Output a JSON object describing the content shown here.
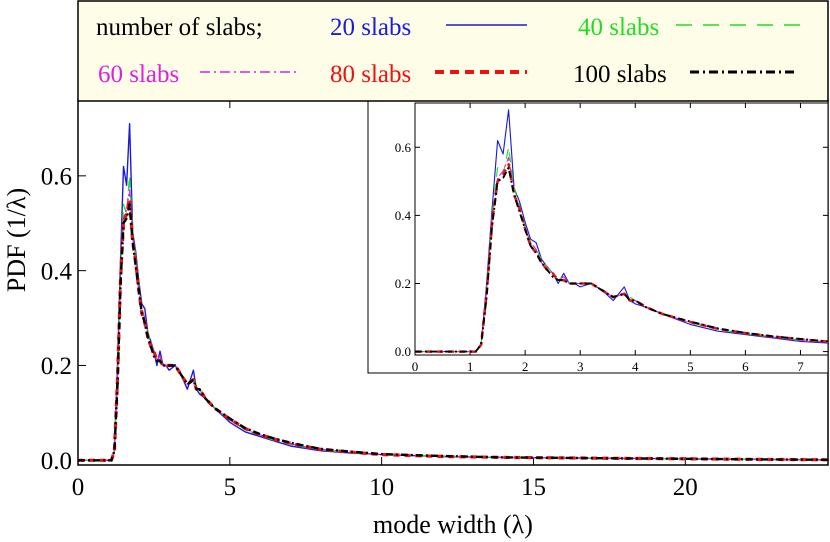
{
  "chart_data": [
    {
      "type": "line",
      "role": "main",
      "xlabel": "mode width (λ)",
      "ylabel": "PDF (1/λ)",
      "xlim": [
        0,
        24.7
      ],
      "ylim": [
        -0.01,
        0.76
      ],
      "xticks": [
        0,
        5,
        10,
        15,
        20
      ],
      "yticks": [
        0.0,
        0.2,
        0.4,
        0.6
      ],
      "ytick_labels": [
        "0.0",
        "0.2",
        "0.4",
        "0.6"
      ],
      "legend": {
        "placement": "top",
        "heading": "number of slabs;",
        "entries": [
          {
            "label": "20 slabs",
            "series": "20 slabs"
          },
          {
            "label": "40 slabs",
            "series": "40 slabs"
          },
          {
            "label": "60 slabs",
            "series": "60 slabs"
          },
          {
            "label": "80 slabs",
            "series": "80 slabs"
          },
          {
            "label": "100 slabs",
            "series": "100 slabs"
          }
        ]
      },
      "series": [
        {
          "name": "20 slabs",
          "color": "#1a1adc",
          "style": "solid",
          "x": [
            0,
            1.0,
            1.1,
            1.2,
            1.3,
            1.4,
            1.5,
            1.6,
            1.7,
            1.8,
            1.9,
            2.0,
            2.1,
            2.2,
            2.3,
            2.4,
            2.5,
            2.6,
            2.7,
            2.8,
            2.9,
            3.0,
            3.2,
            3.4,
            3.6,
            3.8,
            3.9,
            4.0,
            4.2,
            4.5,
            5.0,
            5.5,
            6.0,
            6.5,
            7.0,
            7.5,
            8,
            9,
            10,
            12,
            14,
            16,
            18,
            20,
            22,
            24.7
          ],
          "y": [
            0,
            0,
            0,
            0.02,
            0.2,
            0.42,
            0.62,
            0.58,
            0.71,
            0.48,
            0.44,
            0.38,
            0.33,
            0.32,
            0.27,
            0.25,
            0.23,
            0.2,
            0.23,
            0.2,
            0.2,
            0.19,
            0.2,
            0.18,
            0.15,
            0.19,
            0.15,
            0.14,
            0.13,
            0.11,
            0.08,
            0.06,
            0.05,
            0.04,
            0.03,
            0.025,
            0.02,
            0.015,
            0.012,
            0.008,
            0.006,
            0.005,
            0.004,
            0.003,
            0.002,
            0.001
          ]
        },
        {
          "name": "40 slabs",
          "color": "#22dd22",
          "style": "dashed",
          "x": [
            0,
            1.0,
            1.1,
            1.2,
            1.3,
            1.4,
            1.5,
            1.6,
            1.7,
            1.8,
            1.9,
            2.0,
            2.1,
            2.2,
            2.3,
            2.4,
            2.5,
            2.6,
            2.7,
            2.8,
            2.9,
            3.0,
            3.2,
            3.4,
            3.6,
            3.8,
            3.9,
            4.0,
            4.2,
            4.5,
            5.0,
            5.5,
            6.0,
            6.5,
            7.0,
            7.5,
            8,
            9,
            10,
            12,
            14,
            16,
            18,
            20,
            22,
            24.7
          ],
          "y": [
            0,
            0,
            0,
            0.02,
            0.19,
            0.4,
            0.54,
            0.52,
            0.6,
            0.48,
            0.43,
            0.37,
            0.32,
            0.3,
            0.27,
            0.25,
            0.23,
            0.21,
            0.22,
            0.2,
            0.2,
            0.2,
            0.2,
            0.18,
            0.16,
            0.17,
            0.16,
            0.15,
            0.13,
            0.11,
            0.085,
            0.065,
            0.052,
            0.042,
            0.034,
            0.027,
            0.022,
            0.016,
            0.012,
            0.008,
            0.006,
            0.005,
            0.004,
            0.003,
            0.002,
            0.001
          ]
        },
        {
          "name": "60 slabs",
          "color": "#dd22dd",
          "style": "dashdot",
          "x": [
            0,
            1.0,
            1.1,
            1.2,
            1.3,
            1.4,
            1.5,
            1.6,
            1.7,
            1.8,
            1.9,
            2.0,
            2.1,
            2.2,
            2.3,
            2.4,
            2.5,
            2.6,
            2.7,
            2.8,
            2.9,
            3.0,
            3.2,
            3.4,
            3.6,
            3.8,
            3.9,
            4.0,
            4.2,
            4.5,
            5.0,
            5.5,
            6.0,
            6.5,
            7.0,
            7.5,
            8,
            9,
            10,
            12,
            14,
            16,
            18,
            20,
            22,
            24.7
          ],
          "y": [
            0,
            0,
            0,
            0.02,
            0.18,
            0.39,
            0.51,
            0.53,
            0.57,
            0.47,
            0.42,
            0.36,
            0.32,
            0.3,
            0.26,
            0.25,
            0.23,
            0.21,
            0.22,
            0.2,
            0.2,
            0.2,
            0.2,
            0.18,
            0.16,
            0.17,
            0.15,
            0.15,
            0.13,
            0.11,
            0.085,
            0.066,
            0.053,
            0.043,
            0.035,
            0.028,
            0.023,
            0.017,
            0.012,
            0.008,
            0.006,
            0.005,
            0.004,
            0.003,
            0.002,
            0.001
          ]
        },
        {
          "name": "80 slabs",
          "color": "#ee1111",
          "style": "thickdash",
          "x": [
            0,
            1.0,
            1.1,
            1.2,
            1.3,
            1.4,
            1.5,
            1.6,
            1.7,
            1.8,
            1.9,
            2.0,
            2.1,
            2.2,
            2.3,
            2.4,
            2.5,
            2.6,
            2.7,
            2.8,
            2.9,
            3.0,
            3.2,
            3.4,
            3.6,
            3.8,
            3.9,
            4.0,
            4.2,
            4.5,
            5.0,
            5.5,
            6.0,
            6.5,
            7.0,
            7.5,
            8,
            9,
            10,
            12,
            14,
            16,
            18,
            20,
            22,
            24.7
          ],
          "y": [
            0,
            0,
            0,
            0.02,
            0.17,
            0.38,
            0.5,
            0.52,
            0.55,
            0.46,
            0.42,
            0.36,
            0.31,
            0.29,
            0.26,
            0.24,
            0.23,
            0.21,
            0.21,
            0.2,
            0.2,
            0.2,
            0.2,
            0.18,
            0.16,
            0.17,
            0.15,
            0.15,
            0.13,
            0.11,
            0.087,
            0.067,
            0.054,
            0.044,
            0.036,
            0.029,
            0.023,
            0.017,
            0.012,
            0.008,
            0.006,
            0.005,
            0.004,
            0.003,
            0.002,
            0.001
          ]
        },
        {
          "name": "100 slabs",
          "color": "#000000",
          "style": "dashdot-thick",
          "x": [
            0,
            1.0,
            1.1,
            1.2,
            1.3,
            1.4,
            1.5,
            1.6,
            1.7,
            1.8,
            1.9,
            2.0,
            2.1,
            2.2,
            2.3,
            2.4,
            2.5,
            2.6,
            2.7,
            2.8,
            2.9,
            3.0,
            3.2,
            3.4,
            3.6,
            3.8,
            3.9,
            4.0,
            4.2,
            4.5,
            5.0,
            5.5,
            6.0,
            6.5,
            7.0,
            7.5,
            8,
            9,
            10,
            12,
            14,
            16,
            18,
            20,
            22,
            24.7
          ],
          "y": [
            0,
            0,
            0,
            0.02,
            0.16,
            0.37,
            0.5,
            0.51,
            0.54,
            0.46,
            0.41,
            0.36,
            0.31,
            0.29,
            0.26,
            0.24,
            0.22,
            0.21,
            0.21,
            0.2,
            0.2,
            0.2,
            0.2,
            0.18,
            0.16,
            0.17,
            0.15,
            0.15,
            0.13,
            0.11,
            0.088,
            0.068,
            0.055,
            0.045,
            0.037,
            0.03,
            0.024,
            0.018,
            0.013,
            0.009,
            0.006,
            0.005,
            0.004,
            0.003,
            0.002,
            0.001
          ]
        }
      ]
    },
    {
      "type": "line",
      "role": "inset",
      "xlim": [
        0,
        7.5
      ],
      "ylim": [
        -0.01,
        0.73
      ],
      "xticks": [
        0,
        1,
        2,
        3,
        4,
        5,
        6,
        7
      ],
      "yticks": [
        0.0,
        0.2,
        0.4,
        0.6
      ],
      "ytick_labels": [
        "0.0",
        "0.2",
        "0.4",
        "0.6"
      ],
      "series_ref": "same series as main plot, x range 0–7.5"
    }
  ]
}
